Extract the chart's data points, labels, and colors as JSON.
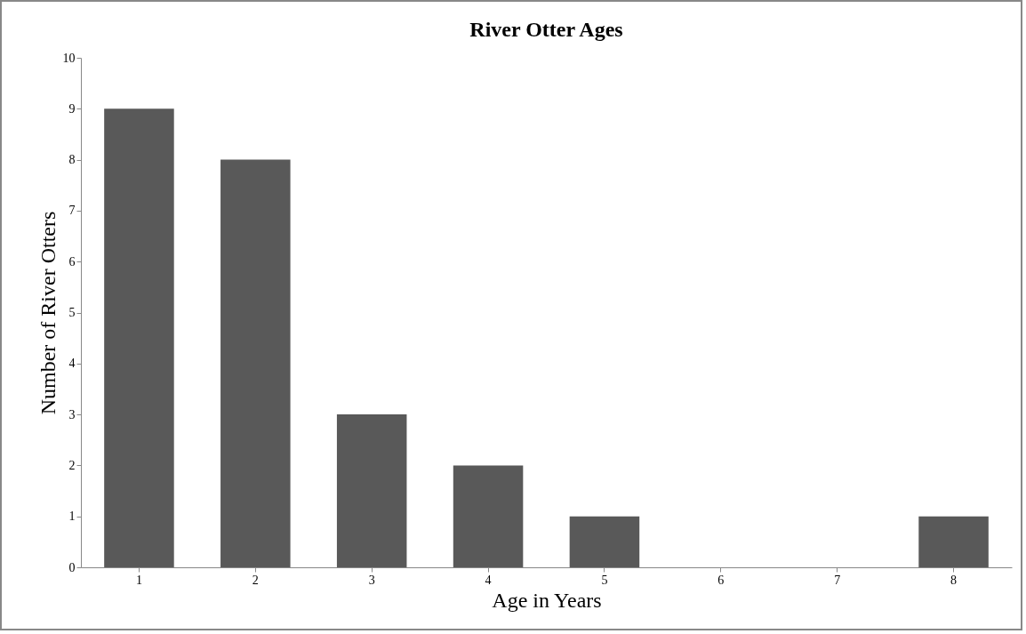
{
  "chart_data": {
    "type": "bar",
    "title": "River Otter Ages",
    "xlabel": "Age in Years",
    "ylabel": "Number of River Otters",
    "categories": [
      "1",
      "2",
      "3",
      "4",
      "5",
      "6",
      "7",
      "8"
    ],
    "values": [
      9,
      8,
      3,
      2,
      1,
      0,
      0,
      1
    ],
    "color": "#595959",
    "ylim": [
      0,
      10
    ],
    "yticks": [
      0,
      1,
      2,
      3,
      4,
      5,
      6,
      7,
      8,
      9,
      10
    ],
    "grid": false
  }
}
